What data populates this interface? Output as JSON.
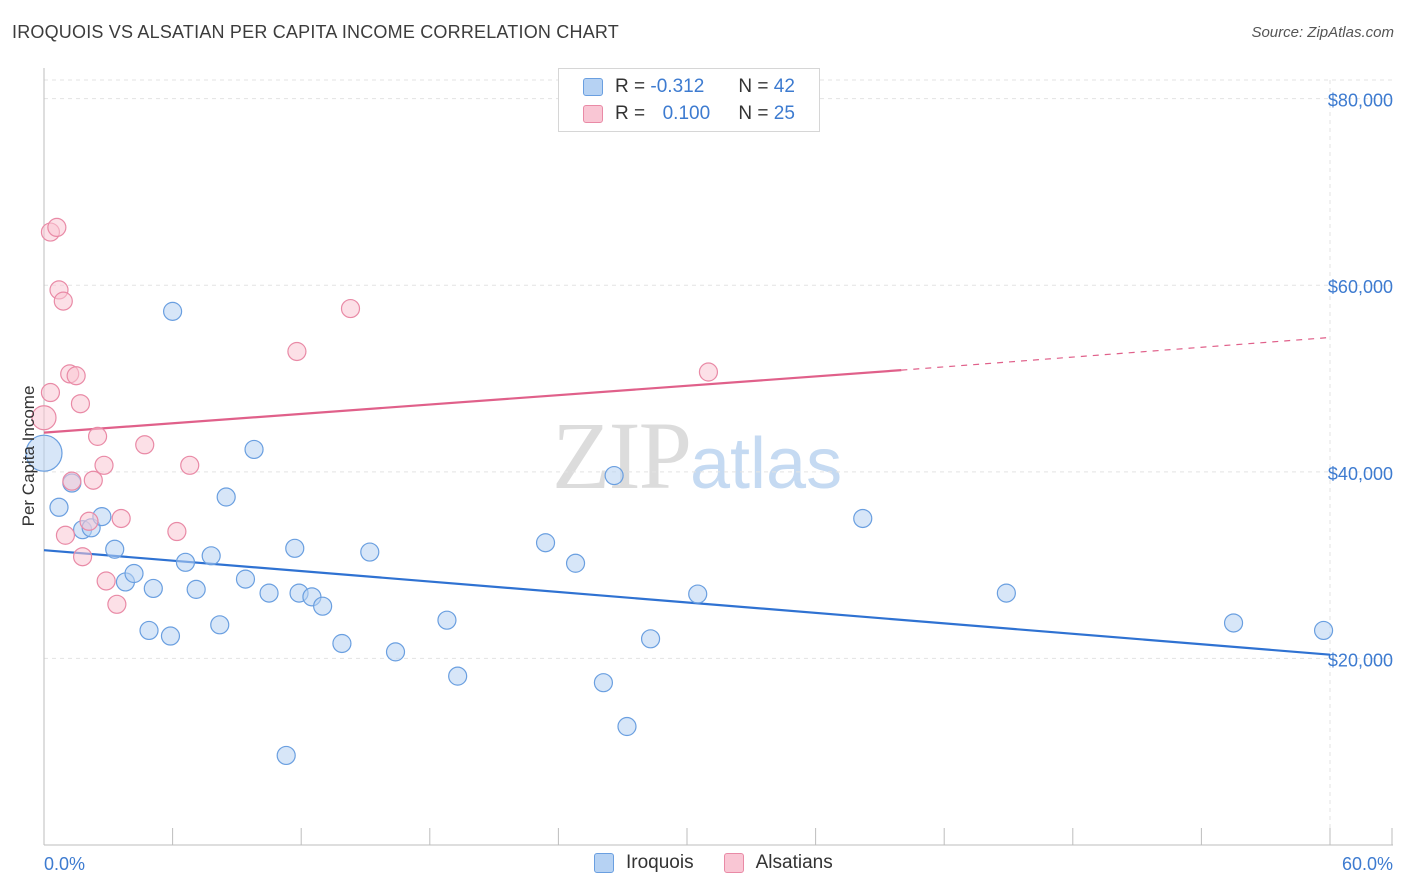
{
  "title": "IROQUOIS VS ALSATIAN PER CAPITA INCOME CORRELATION CHART",
  "source": "Source: ZipAtlas.com",
  "watermark": {
    "zip": "ZIP",
    "atlas": "atlas"
  },
  "legend": {
    "rows": [
      {
        "r_label": "R =",
        "r_value": "-0.312",
        "n_label": "N =",
        "n_value": "42"
      },
      {
        "r_label": "R =",
        "r_value": "0.100",
        "n_label": "N =",
        "n_value": "25"
      }
    ]
  },
  "bottom_legend": {
    "items": [
      "Iroquois",
      "Alsatians"
    ]
  },
  "colors": {
    "iroquois_fill": "#b6d2f3",
    "iroquois_stroke": "#6a9fe0",
    "iroquois_line": "#2f72d2",
    "alsatian_fill": "#f9c6d4",
    "alsatian_stroke": "#e98aa6",
    "alsatian_line": "#e0608a"
  },
  "chart_data": {
    "type": "scatter",
    "title": "IROQUOIS VS ALSATIAN PER CAPITA INCOME CORRELATION CHART",
    "xlabel": "",
    "ylabel": "Per Capita Income",
    "xlim": [
      0,
      60
    ],
    "ylim": [
      0,
      82000
    ],
    "x_tick_labels": [
      "0.0%",
      "60.0%"
    ],
    "y_ticks": [
      20000,
      40000,
      60000,
      80000
    ],
    "y_tick_labels": [
      "$20,000",
      "$40,000",
      "$60,000",
      "$80,000"
    ],
    "series": [
      {
        "name": "Iroquois",
        "points": [
          [
            0,
            42000,
            18
          ],
          [
            0.7,
            36200,
            9
          ],
          [
            1.3,
            38800,
            9
          ],
          [
            1.8,
            33800,
            9
          ],
          [
            2.2,
            34000,
            9
          ],
          [
            2.7,
            35200,
            9
          ],
          [
            3.3,
            31700,
            9
          ],
          [
            3.8,
            28200,
            9
          ],
          [
            4.2,
            29100,
            9
          ],
          [
            5.1,
            27500,
            9
          ],
          [
            4.9,
            23000,
            9
          ],
          [
            5.9,
            22400,
            9
          ],
          [
            6.0,
            57200,
            9
          ],
          [
            6.6,
            30300,
            9
          ],
          [
            7.1,
            27400,
            9
          ],
          [
            7.8,
            31000,
            9
          ],
          [
            8.2,
            23600,
            9
          ],
          [
            8.5,
            37300,
            9
          ],
          [
            9.4,
            28500,
            9
          ],
          [
            9.8,
            42400,
            9
          ],
          [
            10.5,
            27000,
            9
          ],
          [
            11.3,
            9600,
            9
          ],
          [
            11.7,
            31800,
            9
          ],
          [
            11.9,
            27000,
            9
          ],
          [
            12.5,
            26600,
            9
          ],
          [
            13.0,
            25600,
            9
          ],
          [
            13.9,
            21600,
            9
          ],
          [
            15.2,
            31400,
            9
          ],
          [
            16.4,
            20700,
            9
          ],
          [
            18.8,
            24100,
            9
          ],
          [
            19.3,
            18100,
            9
          ],
          [
            23.4,
            32400,
            9
          ],
          [
            24.8,
            30200,
            9
          ],
          [
            26.1,
            17400,
            9
          ],
          [
            26.6,
            39600,
            9
          ],
          [
            27.2,
            12700,
            9
          ],
          [
            28.3,
            22100,
            9
          ],
          [
            30.5,
            26900,
            9
          ],
          [
            38.2,
            35000,
            9
          ],
          [
            44.9,
            27000,
            9
          ],
          [
            55.5,
            23800,
            9
          ],
          [
            59.7,
            23000,
            9
          ]
        ],
        "trend": {
          "x": [
            0,
            60
          ],
          "y": [
            31600,
            20400
          ]
        }
      },
      {
        "name": "Alsatians",
        "points": [
          [
            0,
            45800,
            12
          ],
          [
            0.3,
            65700,
            9
          ],
          [
            0.6,
            66200,
            9
          ],
          [
            0.7,
            59500,
            9
          ],
          [
            0.9,
            58300,
            9
          ],
          [
            0.3,
            48500,
            9
          ],
          [
            1.2,
            50500,
            9
          ],
          [
            1.5,
            50300,
            9
          ],
          [
            1.7,
            47300,
            9
          ],
          [
            1.0,
            33200,
            9
          ],
          [
            1.3,
            39000,
            9
          ],
          [
            1.8,
            30900,
            9
          ],
          [
            2.1,
            34700,
            9
          ],
          [
            2.3,
            39100,
            9
          ],
          [
            2.5,
            43800,
            9
          ],
          [
            2.8,
            40700,
            9
          ],
          [
            2.9,
            28300,
            9
          ],
          [
            3.4,
            25800,
            9
          ],
          [
            3.6,
            35000,
            9
          ],
          [
            4.7,
            42900,
            9
          ],
          [
            6.2,
            33600,
            9
          ],
          [
            6.8,
            40700,
            9
          ],
          [
            11.8,
            52900,
            9
          ],
          [
            14.3,
            57500,
            9
          ],
          [
            31.0,
            50700,
            9
          ]
        ],
        "trend": {
          "x": [
            0,
            40
          ],
          "y": [
            44200,
            50900
          ]
        },
        "trend_projection": {
          "x": [
            40,
            60
          ],
          "y": [
            50900,
            54400
          ]
        }
      }
    ]
  }
}
